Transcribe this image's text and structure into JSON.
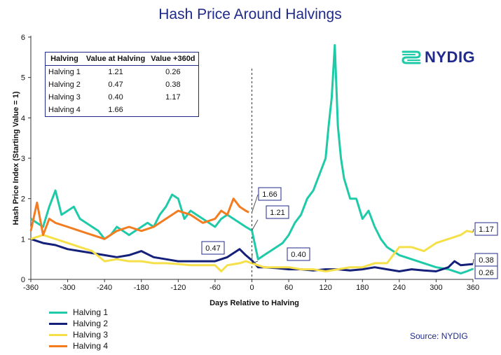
{
  "chart_data": {
    "type": "line",
    "title": "Hash Price Around Halvings",
    "xlabel": "Days Relative to Halving",
    "ylabel": "Hash Price Index (Starting Value = 1)",
    "xlim": [
      -360,
      360
    ],
    "ylim": [
      0,
      6
    ],
    "x_ticks": [
      -360,
      -300,
      -240,
      -180,
      -120,
      -60,
      0,
      60,
      120,
      180,
      240,
      300,
      360
    ],
    "y_ticks": [
      0,
      1,
      2,
      3,
      4,
      5,
      6
    ],
    "series": [
      {
        "name": "Halving 1",
        "color": "#1fcaa8",
        "x": [
          -360,
          -340,
          -330,
          -320,
          -310,
          -300,
          -290,
          -280,
          -270,
          -260,
          -250,
          -240,
          -230,
          -220,
          -210,
          -200,
          -190,
          -180,
          -170,
          -160,
          -150,
          -140,
          -130,
          -120,
          -110,
          -100,
          -90,
          -80,
          -70,
          -60,
          -50,
          -40,
          -30,
          -20,
          -10,
          0,
          10,
          20,
          30,
          40,
          50,
          60,
          70,
          80,
          90,
          100,
          110,
          120,
          125,
          130,
          135,
          140,
          145,
          150,
          160,
          170,
          180,
          190,
          200,
          210,
          220,
          230,
          240,
          260,
          280,
          300,
          320,
          340,
          350,
          360
        ],
        "values": [
          1.5,
          1.3,
          1.8,
          2.2,
          1.6,
          1.7,
          1.8,
          1.5,
          1.4,
          1.3,
          1.2,
          1.0,
          1.1,
          1.3,
          1.2,
          1.1,
          1.2,
          1.3,
          1.4,
          1.3,
          1.6,
          1.8,
          2.1,
          2.0,
          1.5,
          1.7,
          1.6,
          1.5,
          1.4,
          1.3,
          1.5,
          1.6,
          1.5,
          1.4,
          1.3,
          1.21,
          0.5,
          0.6,
          0.7,
          0.8,
          0.9,
          1.1,
          1.4,
          1.6,
          2.0,
          2.2,
          2.6,
          3.0,
          3.8,
          4.5,
          5.8,
          3.8,
          3.0,
          2.5,
          2.0,
          2.0,
          1.5,
          1.7,
          1.3,
          1.0,
          0.8,
          0.7,
          0.6,
          0.5,
          0.4,
          0.3,
          0.25,
          0.15,
          0.2,
          0.26
        ]
      },
      {
        "name": "Halving 2",
        "color": "#14207a",
        "x": [
          -360,
          -340,
          -320,
          -300,
          -280,
          -260,
          -240,
          -220,
          -200,
          -180,
          -160,
          -140,
          -120,
          -100,
          -80,
          -60,
          -40,
          -30,
          -20,
          -10,
          0,
          10,
          20,
          40,
          60,
          80,
          100,
          120,
          140,
          160,
          180,
          200,
          220,
          240,
          260,
          280,
          300,
          320,
          330,
          340,
          360
        ],
        "values": [
          1.0,
          0.9,
          0.85,
          0.75,
          0.7,
          0.65,
          0.6,
          0.55,
          0.6,
          0.7,
          0.55,
          0.5,
          0.45,
          0.45,
          0.45,
          0.45,
          0.55,
          0.65,
          0.75,
          0.6,
          0.47,
          0.3,
          0.3,
          0.28,
          0.25,
          0.25,
          0.22,
          0.25,
          0.25,
          0.22,
          0.25,
          0.3,
          0.25,
          0.2,
          0.25,
          0.22,
          0.2,
          0.3,
          0.45,
          0.35,
          0.38
        ]
      },
      {
        "name": "Halving 3",
        "color": "#f5e04a",
        "x": [
          -360,
          -340,
          -320,
          -300,
          -280,
          -260,
          -240,
          -220,
          -200,
          -180,
          -160,
          -140,
          -120,
          -100,
          -80,
          -60,
          -50,
          -40,
          -20,
          -10,
          0,
          20,
          40,
          60,
          80,
          100,
          120,
          140,
          160,
          180,
          200,
          220,
          240,
          260,
          280,
          300,
          320,
          340,
          350,
          360
        ],
        "values": [
          1.0,
          1.1,
          1.0,
          0.9,
          0.8,
          0.7,
          0.45,
          0.5,
          0.45,
          0.45,
          0.4,
          0.4,
          0.38,
          0.35,
          0.35,
          0.35,
          0.2,
          0.35,
          0.4,
          0.45,
          0.4,
          0.3,
          0.3,
          0.3,
          0.25,
          0.25,
          0.2,
          0.25,
          0.3,
          0.3,
          0.4,
          0.4,
          0.8,
          0.8,
          0.7,
          0.9,
          1.0,
          1.1,
          1.2,
          1.17
        ]
      },
      {
        "name": "Halving 4",
        "color": "#f47c20",
        "x": [
          -360,
          -350,
          -340,
          -330,
          -320,
          -300,
          -280,
          -260,
          -240,
          -220,
          -200,
          -180,
          -160,
          -140,
          -120,
          -100,
          -80,
          -60,
          -50,
          -40,
          -30,
          -20,
          -10,
          -5
        ],
        "values": [
          1.2,
          1.9,
          1.1,
          1.5,
          1.4,
          1.3,
          1.2,
          1.1,
          1.0,
          1.2,
          1.3,
          1.2,
          1.3,
          1.5,
          1.7,
          1.6,
          1.4,
          1.5,
          1.7,
          1.6,
          2.0,
          1.8,
          1.7,
          1.66
        ]
      }
    ],
    "annotations": [
      {
        "label": "1.66",
        "x": 0,
        "y": 1.66
      },
      {
        "label": "1.21",
        "x": 0,
        "y": 1.21
      },
      {
        "label": "0.47",
        "x": 0,
        "y": 0.47
      },
      {
        "label": "0.40",
        "x": 0,
        "y": 0.4
      },
      {
        "label": "1.17",
        "x": 360,
        "y": 1.17
      },
      {
        "label": "0.38",
        "x": 360,
        "y": 0.38
      },
      {
        "label": "0.26",
        "x": 360,
        "y": 0.26
      }
    ]
  },
  "table": {
    "headers": [
      "Halving",
      "Value at Halving",
      "Value +360d"
    ],
    "rows": [
      [
        "Halving 1",
        "1.21",
        "0.26"
      ],
      [
        "Halving 2",
        "0.47",
        "0.38"
      ],
      [
        "Halving 3",
        "0.40",
        "1.17"
      ],
      [
        "Halving 4",
        "1.66",
        ""
      ]
    ]
  },
  "logo": {
    "text": "NYDIG",
    "accent": "#1fcaa8"
  },
  "source": "Source: NYDIG",
  "legend": [
    {
      "name": "Halving 1",
      "color": "#1fcaa8"
    },
    {
      "name": "Halving 2",
      "color": "#14207a"
    },
    {
      "name": "Halving 3",
      "color": "#f5e04a"
    },
    {
      "name": "Halving 4",
      "color": "#f47c20"
    }
  ]
}
